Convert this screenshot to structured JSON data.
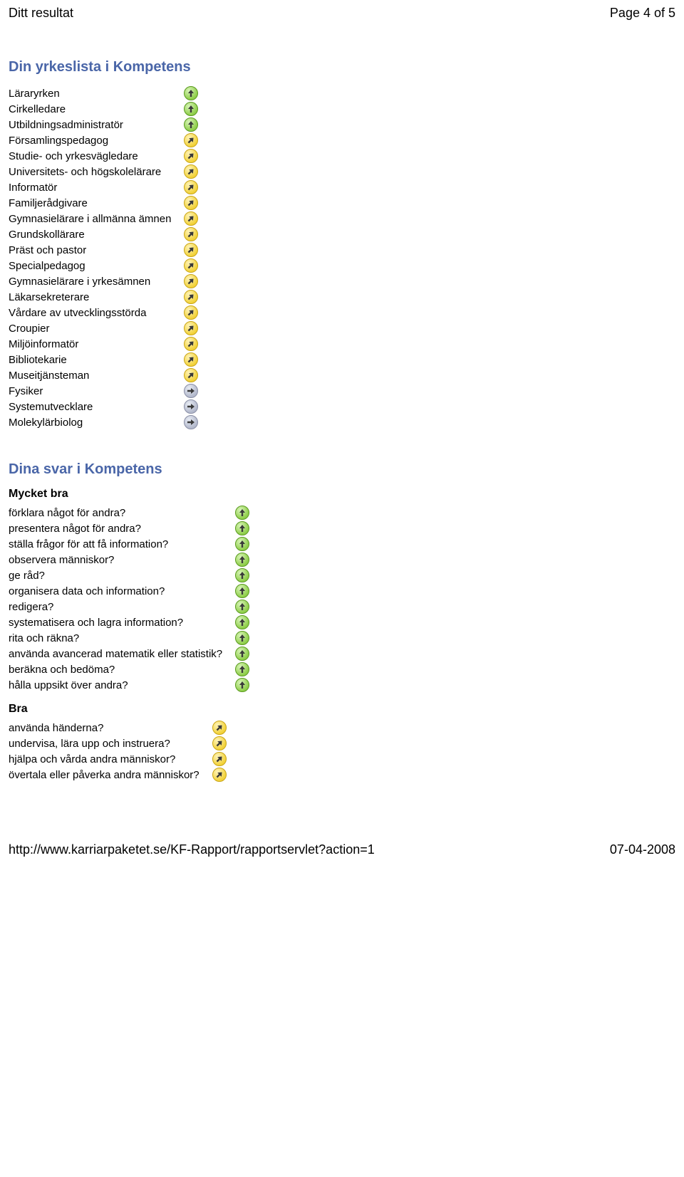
{
  "header": {
    "title": "Ditt resultat",
    "page_indicator": "Page 4 of 5"
  },
  "section1": {
    "title": "Din yrkeslista i Kompetens",
    "items": [
      {
        "label": "Läraryrken",
        "icon": "green-up"
      },
      {
        "label": "Cirkelledare",
        "icon": "green-up"
      },
      {
        "label": "Utbildningsadministratör",
        "icon": "green-up"
      },
      {
        "label": "Församlingspedagog",
        "icon": "yellow-diag"
      },
      {
        "label": "Studie- och yrkesvägledare",
        "icon": "yellow-diag"
      },
      {
        "label": "Universitets- och högskolelärare",
        "icon": "yellow-diag"
      },
      {
        "label": "Informatör",
        "icon": "yellow-diag"
      },
      {
        "label": "Familjerådgivare",
        "icon": "yellow-diag"
      },
      {
        "label": "Gymnasielärare i allmänna ämnen",
        "icon": "yellow-diag"
      },
      {
        "label": "Grundskollärare",
        "icon": "yellow-diag"
      },
      {
        "label": "Präst och pastor",
        "icon": "yellow-diag"
      },
      {
        "label": "Specialpedagog",
        "icon": "yellow-diag"
      },
      {
        "label": "Gymnasielärare i yrkesämnen",
        "icon": "yellow-diag"
      },
      {
        "label": "Läkarsekreterare",
        "icon": "yellow-diag"
      },
      {
        "label": "Vårdare av utvecklingsstörda",
        "icon": "yellow-diag"
      },
      {
        "label": "Croupier",
        "icon": "yellow-diag"
      },
      {
        "label": "Miljöinformatör",
        "icon": "yellow-diag"
      },
      {
        "label": "Bibliotekarie",
        "icon": "yellow-diag"
      },
      {
        "label": "Museitjänsteman",
        "icon": "yellow-diag"
      },
      {
        "label": "Fysiker",
        "icon": "grey-right"
      },
      {
        "label": "Systemutvecklare",
        "icon": "grey-right"
      },
      {
        "label": "Molekylärbiolog",
        "icon": "grey-right"
      }
    ]
  },
  "section2": {
    "title": "Dina svar i Kompetens",
    "groups": [
      {
        "heading": "Mycket bra",
        "items": [
          {
            "label": "förklara något för andra?",
            "icon": "green-up"
          },
          {
            "label": "presentera något för andra?",
            "icon": "green-up"
          },
          {
            "label": "ställa frågor för att få information?",
            "icon": "green-up"
          },
          {
            "label": "observera människor?",
            "icon": "green-up"
          },
          {
            "label": "ge råd?",
            "icon": "green-up"
          },
          {
            "label": "organisera data och information?",
            "icon": "green-up"
          },
          {
            "label": "redigera?",
            "icon": "green-up"
          },
          {
            "label": "systematisera och lagra information?",
            "icon": "green-up"
          },
          {
            "label": "rita och räkna?",
            "icon": "green-up"
          },
          {
            "label": "använda avancerad matematik eller statistik?",
            "icon": "green-up"
          },
          {
            "label": "beräkna och bedöma?",
            "icon": "green-up"
          },
          {
            "label": "hålla uppsikt över andra?",
            "icon": "green-up"
          }
        ]
      },
      {
        "heading": "Bra",
        "items": [
          {
            "label": "använda händerna?",
            "icon": "yellow-diag"
          },
          {
            "label": "undervisa, lära upp och instruera?",
            "icon": "yellow-diag"
          },
          {
            "label": "hjälpa och vårda andra människor?",
            "icon": "yellow-diag"
          },
          {
            "label": "övertala eller påverka andra människor?",
            "icon": "yellow-diag"
          }
        ]
      }
    ]
  },
  "footer": {
    "url": "http://www.karriarpaketet.se/KF-Rapport/rapportservlet?action=1",
    "date": "07-04-2008"
  },
  "colors": {
    "section_title": "#4a66a8",
    "green_fill": "#8fce4a",
    "green_border": "#5a9a1f",
    "yellow_fill": "#f2d23a",
    "yellow_border": "#c9a516",
    "grey_fill": "#b3b9cc",
    "grey_border": "#8a8fa6",
    "arrow_dark": "#3a3a3a"
  }
}
